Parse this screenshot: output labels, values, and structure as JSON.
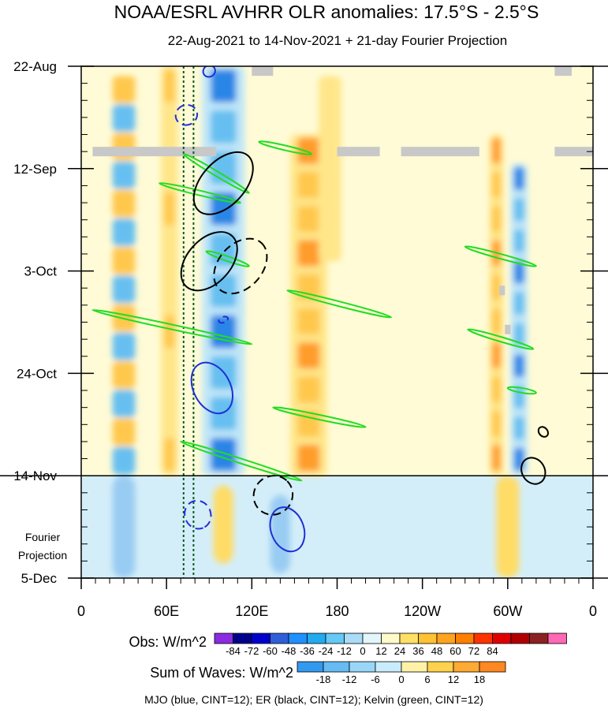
{
  "chart_data": {
    "type": "heatmap",
    "title": "NOAA/ESRL AVHRR OLR anomalies: 17.5°S - 2.5°S",
    "subtitle": "22-Aug-2021 to 14-Nov-2021 + 21-day Fourier Projection",
    "x_ticks": [
      {
        "lon": 0,
        "label": "0"
      },
      {
        "lon": 60,
        "label": "60E"
      },
      {
        "lon": 120,
        "label": "120E"
      },
      {
        "lon": 180,
        "label": "180"
      },
      {
        "lon": 240,
        "label": "120W"
      },
      {
        "lon": 300,
        "label": "60W"
      },
      {
        "lon": 360,
        "label": "0"
      }
    ],
    "y_ticks": [
      {
        "day": 0,
        "label": "22-Aug"
      },
      {
        "day": 21,
        "label": "12-Sep"
      },
      {
        "day": 42,
        "label": "3-Oct"
      },
      {
        "day": 63,
        "label": "24-Oct"
      },
      {
        "day": 84,
        "label": "14-Nov"
      },
      {
        "day": 105,
        "label": "5-Dec"
      }
    ],
    "xlim": [
      0,
      360
    ],
    "ylim_days": [
      0,
      105
    ],
    "observed_end_day": 84,
    "projection_label_line1": "Fourier",
    "projection_label_line2": "Projection",
    "reference_lines_lon": [
      72,
      79
    ],
    "obs_colorbar": {
      "label": "Obs: W/m^2",
      "levels": [
        "-84",
        "-72",
        "-60",
        "-48",
        "-36",
        "-24",
        "-12",
        "0",
        "12",
        "24",
        "36",
        "48",
        "60",
        "72",
        "84"
      ],
      "colors": [
        "#8a2be2",
        "#00008b",
        "#0000cd",
        "#2f5fd8",
        "#1e90ff",
        "#22aaee",
        "#66c8f5",
        "#aadcf7",
        "#e2f6fb",
        "#fffbc8",
        "#ffe066",
        "#ffc233",
        "#ffa31f",
        "#ff7f00",
        "#ff3300",
        "#e00000",
        "#b00000",
        "#8b2222",
        "#ff69b4"
      ]
    },
    "waves_colorbar": {
      "label": "Sum of Waves: W/m^2",
      "levels": [
        "-18",
        "-12",
        "-6",
        "0",
        "6",
        "12",
        "18"
      ],
      "colors": [
        "#3399ee",
        "#66bbf2",
        "#99d6f8",
        "#c8ecfb",
        "#fff2a8",
        "#ffd24d",
        "#ffaa33",
        "#ff8822"
      ]
    },
    "footer": "MJO (blue, CINT=12); ER (black, CINT=12); Kelvin (green, CINT=12)",
    "wave_colors": {
      "MJO": "#1f2fd6",
      "ER": "#000000",
      "Kelvin": "#22dd22"
    },
    "anomaly_bands": [
      {
        "lon": 30,
        "width": 16,
        "day_start": 2,
        "day_end": 84,
        "sign": "mixed",
        "peak": 60
      },
      {
        "lon": 62,
        "width": 12,
        "day_start": 0,
        "day_end": 84,
        "sign": "positive",
        "peak": 36
      },
      {
        "lon": 100,
        "width": 30,
        "day_start": 0,
        "day_end": 84,
        "sign": "negative",
        "peak": -48
      },
      {
        "lon": 160,
        "width": 26,
        "day_start": 14,
        "day_end": 84,
        "sign": "positive",
        "peak": 48
      },
      {
        "lon": 175,
        "width": 16,
        "day_start": 2,
        "day_end": 40,
        "sign": "positive",
        "peak": 24
      },
      {
        "lon": 292,
        "width": 10,
        "day_start": 14,
        "day_end": 84,
        "sign": "positive",
        "peak": 48
      },
      {
        "lon": 308,
        "width": 12,
        "day_start": 20,
        "day_end": 84,
        "sign": "negative",
        "peak": -48
      }
    ],
    "projection_bands": [
      {
        "lon": 30,
        "width": 16,
        "day_start": 84,
        "day_end": 105,
        "sign": "negative"
      },
      {
        "lon": 100,
        "width": 14,
        "day_start": 86,
        "day_end": 102,
        "sign": "positive"
      },
      {
        "lon": 140,
        "width": 14,
        "day_start": 88,
        "day_end": 104,
        "sign": "negative"
      },
      {
        "lon": 300,
        "width": 16,
        "day_start": 84,
        "day_end": 105,
        "sign": "positive"
      }
    ],
    "missing_segments": [
      {
        "lon_start": 120,
        "lon_end": 135,
        "day": 1
      },
      {
        "lon_start": 333,
        "lon_end": 345,
        "day": 1
      },
      {
        "lon_start": 8,
        "lon_end": 95,
        "day": 17.5
      },
      {
        "lon_start": 180,
        "lon_end": 210,
        "day": 17.5
      },
      {
        "lon_start": 225,
        "lon_end": 280,
        "day": 17.5
      },
      {
        "lon_start": 333,
        "lon_end": 360,
        "day": 17.5
      },
      {
        "lon_start": 294,
        "lon_end": 298,
        "day": 46
      },
      {
        "lon_start": 298,
        "lon_end": 302,
        "day": 54
      }
    ],
    "kelvin_contours": [
      {
        "x1": 72,
        "y1": 18,
        "x2": 118,
        "y2": 26
      },
      {
        "x1": 125,
        "y1": 15.5,
        "x2": 162,
        "y2": 18
      },
      {
        "x1": 55,
        "y1": 24,
        "x2": 112,
        "y2": 28
      },
      {
        "x1": 88,
        "y1": 38,
        "x2": 118,
        "y2": 41
      },
      {
        "x1": 145,
        "y1": 46,
        "x2": 218,
        "y2": 51.5
      },
      {
        "x1": 8,
        "y1": 50,
        "x2": 120,
        "y2": 57
      },
      {
        "x1": 270,
        "y1": 37,
        "x2": 320,
        "y2": 41
      },
      {
        "x1": 272,
        "y1": 54,
        "x2": 318,
        "y2": 58
      },
      {
        "x1": 135,
        "y1": 70,
        "x2": 200,
        "y2": 74
      },
      {
        "x1": 70,
        "y1": 77,
        "x2": 155,
        "y2": 85
      },
      {
        "x1": 300,
        "y1": 66,
        "x2": 320,
        "y2": 67
      }
    ],
    "er_contours": [
      {
        "cx": 100,
        "cy": 24,
        "rx": 26,
        "ry": 3.2,
        "rot": -48,
        "dashed": false
      },
      {
        "cx": 90,
        "cy": 40,
        "rx": 24,
        "ry": 3.2,
        "rot": -48,
        "dashed": false
      },
      {
        "cx": 112,
        "cy": 41,
        "rx": 22,
        "ry": 3.2,
        "rot": -48,
        "dashed": true
      },
      {
        "cx": 135,
        "cy": 88,
        "rx": 14,
        "ry": 2.8,
        "rot": -45,
        "dashed": true
      },
      {
        "cx": 318,
        "cy": 83,
        "rx": 8,
        "ry": 2,
        "rot": -30,
        "dashed": false
      },
      {
        "cx": 325,
        "cy": 75,
        "rx": 3,
        "ry": 0.8,
        "rot": -40,
        "dashed": false
      }
    ],
    "mjo_contours": [
      {
        "cx": 74,
        "cy": 10,
        "rx": 7,
        "ry": 1.6,
        "rot": 70,
        "dashed": true
      },
      {
        "cx": 92,
        "cy": 66,
        "rx": 19,
        "ry": 2.7,
        "rot": 62,
        "dashed": false
      },
      {
        "cx": 145,
        "cy": 95,
        "rx": 16,
        "ry": 2.4,
        "rot": 70,
        "dashed": false
      },
      {
        "cx": 82,
        "cy": 92,
        "rx": 10,
        "ry": 1.9,
        "rot": 68,
        "dashed": true
      },
      {
        "cx": 100,
        "cy": 52,
        "rx": 2,
        "ry": 0.7,
        "rot": 70,
        "dashed": true
      },
      {
        "cx": 90,
        "cy": 1,
        "rx": 4,
        "ry": 0.9,
        "rot": 60,
        "dashed": false
      }
    ]
  }
}
